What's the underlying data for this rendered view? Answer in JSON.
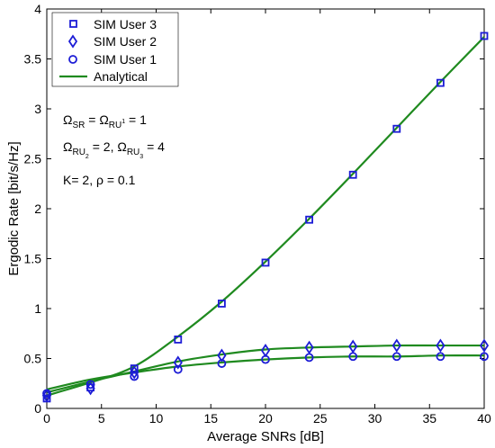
{
  "chart_data": {
    "type": "line",
    "xlabel": "Average SNRs [dB]",
    "ylabel": "Ergodic Rate [bit/s/Hz]",
    "xlim": [
      0,
      40
    ],
    "ylim": [
      0,
      4
    ],
    "xticks": [
      0,
      5,
      10,
      15,
      20,
      25,
      30,
      35,
      40
    ],
    "yticks": [
      0,
      0.5,
      1,
      1.5,
      2,
      2.5,
      3,
      3.5,
      4
    ],
    "grid": false,
    "legend_position": "top-left",
    "series": [
      {
        "name": "SIM User 3",
        "kind": "markers",
        "marker": "square",
        "color": "#1c1cd6",
        "x": [
          0,
          4,
          8,
          12,
          16,
          20,
          24,
          28,
          32,
          36,
          40
        ],
        "y": [
          0.1,
          0.21,
          0.4,
          0.69,
          1.05,
          1.46,
          1.89,
          2.34,
          2.8,
          3.26,
          3.73
        ]
      },
      {
        "name": "SIM User 2",
        "kind": "markers",
        "marker": "diamond",
        "color": "#1c1cd6",
        "x": [
          0,
          4,
          8,
          12,
          16,
          20,
          24,
          28,
          32,
          36,
          40
        ],
        "y": [
          0.13,
          0.2,
          0.36,
          0.46,
          0.53,
          0.58,
          0.61,
          0.62,
          0.63,
          0.63,
          0.63
        ]
      },
      {
        "name": "SIM User 1",
        "kind": "markers",
        "marker": "circle",
        "color": "#1c1cd6",
        "x": [
          0,
          4,
          8,
          12,
          16,
          20,
          24,
          28,
          32,
          36,
          40
        ],
        "y": [
          0.15,
          0.24,
          0.32,
          0.39,
          0.45,
          0.49,
          0.51,
          0.52,
          0.52,
          0.52,
          0.52
        ]
      },
      {
        "name": "Analytical",
        "kind": "line",
        "color": "#1f8a1f",
        "curves": [
          {
            "x": [
              0,
              4,
              8,
              12,
              16,
              20,
              24,
              28,
              32,
              36,
              40
            ],
            "y": [
              0.13,
              0.26,
              0.42,
              0.72,
              1.07,
              1.47,
              1.9,
              2.35,
              2.81,
              3.27,
              3.72
            ]
          },
          {
            "x": [
              0,
              4,
              8,
              12,
              16,
              20,
              24,
              28,
              32,
              36,
              40
            ],
            "y": [
              0.16,
              0.27,
              0.37,
              0.47,
              0.54,
              0.59,
              0.61,
              0.62,
              0.63,
              0.63,
              0.63
            ]
          },
          {
            "x": [
              0,
              4,
              8,
              12,
              16,
              20,
              24,
              28,
              32,
              36,
              40
            ],
            "y": [
              0.19,
              0.29,
              0.36,
              0.42,
              0.46,
              0.49,
              0.51,
              0.52,
              0.52,
              0.53,
              0.53
            ]
          }
        ]
      }
    ],
    "annotations": {
      "line1": {
        "base": "Ω",
        "sub1": "SR",
        "eq": " = Ω",
        "sub2": "RU",
        "sub2b": "1",
        "tail": " = 1"
      },
      "line2": {
        "base": "Ω",
        "sub1": "RU",
        "sub1b": "2",
        "mid": " = 2, Ω",
        "sub2": "RU",
        "sub2b": "3",
        "tail": " = 4"
      },
      "line3": "K= 2,  ρ = 0.1"
    }
  }
}
